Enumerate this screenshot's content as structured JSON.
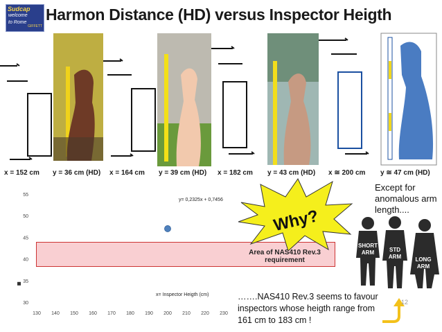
{
  "logo": {
    "line1": "Sudcap",
    "line2": "welcome",
    "line3": "to Rome",
    "line4": "GIFFETT"
  },
  "title": "Harmon Distance (HD) versus Inspector Heigth",
  "measurements": [
    {
      "x_label": "x = 152 cm",
      "y_label": "y = 36 cm (HD)"
    },
    {
      "x_label": "x = 164 cm",
      "y_label": "y = 39 cm (HD)"
    },
    {
      "x_label": "x = 182 cm",
      "y_label": "y = 43 cm (HD)"
    },
    {
      "x_label": "x ≅ 200 cm",
      "y_label": "y ≅ 47 cm (HD)"
    }
  ],
  "chart_data": {
    "type": "scatter",
    "x_ticks": [
      130,
      140,
      150,
      160,
      170,
      180,
      190,
      200,
      210,
      220,
      230
    ],
    "y_ticks": [
      30,
      35,
      40,
      45,
      50,
      55
    ],
    "xlim": [
      130,
      230
    ],
    "ylim": [
      30,
      55
    ],
    "points": [
      {
        "x": 200,
        "y": 47
      }
    ],
    "equation": "y= 0,2325x + 0,7456",
    "xlabel": "x= Inspector Heigth (cm)",
    "requirement_band": {
      "y_min": 38,
      "y_max": 43,
      "label": "Area of NAS410 Rev.3 requirement"
    },
    "colors": {
      "point": "#4f81bd",
      "band_fill": "#f9cfd2",
      "band_border": "#cc3333"
    }
  },
  "why_label": "Why?",
  "note": "Except for anomalous arm length....",
  "people": [
    {
      "label": "SHORT ARM"
    },
    {
      "label": "STD ARM"
    },
    {
      "label": "LONG ARM"
    }
  ],
  "quote": "…….NAS410 Rev.3 seems to favour inspectors whose heigth range from 161 cm to 183 cm !",
  "page_number": "12",
  "colors": {
    "starburst": "#f5ef1c",
    "people": "#2b2b2b",
    "arrow": "#f3c11b",
    "arm": "#4a7cc2"
  }
}
